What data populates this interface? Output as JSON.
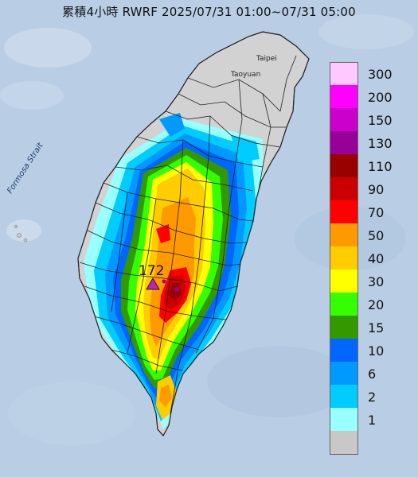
{
  "title": "累積4小時 RWRF 2025/07/31 01:00~07/31 05:00",
  "place_labels": {
    "taipei": "Taipei",
    "taoyuan": "Taoyuan",
    "strait": "Formosa Strait"
  },
  "max_marker": {
    "value": "172",
    "color": "#c020c0"
  },
  "legend": [
    {
      "label": "300",
      "color": "#ffc8ff"
    },
    {
      "label": "200",
      "color": "#ff00ff"
    },
    {
      "label": "150",
      "color": "#cc00cc"
    },
    {
      "label": "130",
      "color": "#990099"
    },
    {
      "label": "110",
      "color": "#990000"
    },
    {
      "label": "90",
      "color": "#cc0000"
    },
    {
      "label": "70",
      "color": "#ff0000"
    },
    {
      "label": "50",
      "color": "#ff9900"
    },
    {
      "label": "40",
      "color": "#ffcc00"
    },
    {
      "label": "30",
      "color": "#ffff00"
    },
    {
      "label": "20",
      "color": "#33ff00"
    },
    {
      "label": "15",
      "color": "#339900"
    },
    {
      "label": "10",
      "color": "#0066ff"
    },
    {
      "label": "6",
      "color": "#0099ff"
    },
    {
      "label": "2",
      "color": "#00ccff"
    },
    {
      "label": "1",
      "color": "#99ffff"
    },
    {
      "label": "",
      "color": "#c8c8c8"
    }
  ],
  "colors": {
    "sea": "#b9cde4",
    "land_base": "#d2d2d2",
    "border": "#222222"
  }
}
